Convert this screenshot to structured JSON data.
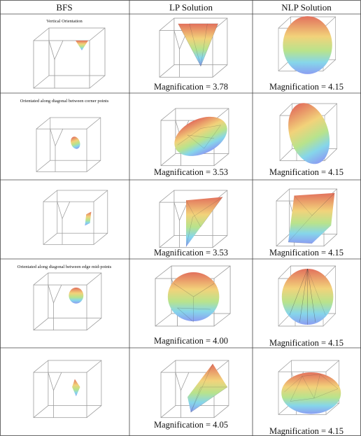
{
  "table": {
    "header": [
      "BFS",
      "LP Solution",
      "NLP Solution"
    ],
    "rows": [
      {
        "caption": "Vertical Orientation",
        "lp": "Magnification = 3.78",
        "nlp": "Magnification = 4.15"
      },
      {
        "caption": "Orientated along diagonal between corner points",
        "lp": "Magnification = 3.53",
        "nlp": "Magnification = 4.15"
      },
      {
        "lp": "Magnification = 3.53",
        "nlp": "Magnification = 4.15"
      },
      {
        "caption": "Orientated along diagonal between edge mid-points",
        "lp": "Magnification = 4.00",
        "nlp": "Magnification = 4.15"
      },
      {
        "lp": "Magnification = 4.05",
        "nlp": "Magnification = 4.15"
      }
    ]
  }
}
